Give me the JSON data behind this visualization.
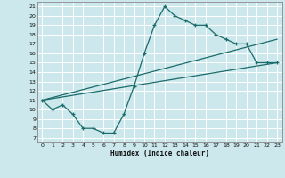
{
  "title": "",
  "xlabel": "Humidex (Indice chaleur)",
  "bg_color": "#cce8ec",
  "grid_color": "#ffffff",
  "line_color": "#1a6b6b",
  "yticks": [
    7,
    8,
    9,
    10,
    11,
    12,
    13,
    14,
    15,
    16,
    17,
    18,
    19,
    20,
    21
  ],
  "xticks": [
    0,
    1,
    2,
    3,
    4,
    5,
    6,
    7,
    8,
    9,
    10,
    11,
    12,
    13,
    14,
    15,
    16,
    17,
    18,
    19,
    20,
    21,
    22,
    23
  ],
  "xlim": [
    -0.5,
    23.5
  ],
  "ylim": [
    6.5,
    21.5
  ],
  "curve_x": [
    0,
    1,
    2,
    3,
    4,
    5,
    6,
    7,
    8,
    9,
    10,
    11,
    12,
    13,
    14,
    15,
    16,
    17,
    18,
    19,
    20,
    21,
    22,
    23
  ],
  "curve_y": [
    11,
    10,
    10.5,
    9.5,
    8,
    8,
    7.5,
    7.5,
    9.5,
    12.5,
    16,
    19,
    21,
    20,
    19.5,
    19,
    19,
    18,
    17.5,
    17,
    17,
    15,
    15,
    15
  ],
  "line1_x": [
    0,
    23
  ],
  "line1_y": [
    11,
    15
  ],
  "line2_x": [
    0,
    23
  ],
  "line2_y": [
    11,
    17.5
  ],
  "xlabel_fontsize": 5.5,
  "tick_fontsize": 4.5
}
